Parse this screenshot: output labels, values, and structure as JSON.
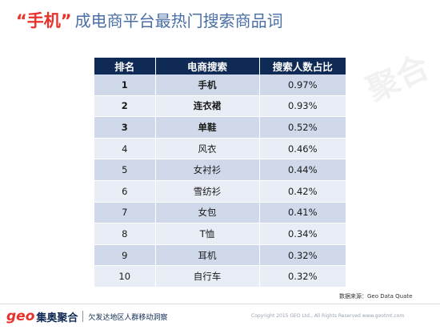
{
  "slide": {
    "title_accent": "“手机”",
    "title_rest": "成电商平台最热门搜索商品词",
    "watermark": "聚合"
  },
  "table": {
    "headers": [
      "排名",
      "电商搜索",
      "搜索人数占比"
    ],
    "rows": [
      {
        "rank": "1",
        "keyword": "手机",
        "share": "0.97%"
      },
      {
        "rank": "2",
        "keyword": "连衣裙",
        "share": "0.93%"
      },
      {
        "rank": "3",
        "keyword": "单鞋",
        "share": "0.52%"
      },
      {
        "rank": "4",
        "keyword": "风衣",
        "share": "0.46%"
      },
      {
        "rank": "5",
        "keyword": "女衬衫",
        "share": "0.44%"
      },
      {
        "rank": "6",
        "keyword": "雪纺衫",
        "share": "0.42%"
      },
      {
        "rank": "7",
        "keyword": "女包",
        "share": "0.41%"
      },
      {
        "rank": "8",
        "keyword": "T恤",
        "share": "0.34%"
      },
      {
        "rank": "9",
        "keyword": "耳机",
        "share": "0.32%"
      },
      {
        "rank": "10",
        "keyword": "自行车",
        "share": "0.32%"
      }
    ]
  },
  "source_note": "数据来源：Geo Data Quate",
  "footer": {
    "logo_mark": "geo",
    "logo_text": "集奥聚合",
    "caption": "欠发达地区人群移动洞察",
    "copyright": "Copyright 2015 GEO Ltd., All Rights Reserved    www.geotmt.com"
  },
  "colors": {
    "accent_red": "#e8322b",
    "header_navy": "#0f2a54",
    "title_blue": "#4a6fa5",
    "row_dark": "#cfd9ea",
    "row_light": "#e9eef6"
  }
}
